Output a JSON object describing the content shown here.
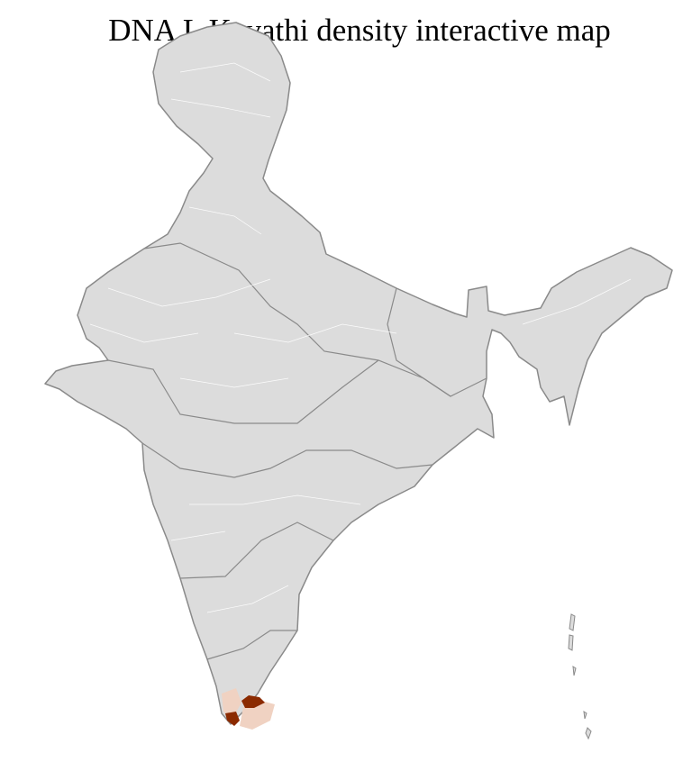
{
  "title": "DNA L Kavathi density interactive map",
  "map": {
    "region": "India (districts)",
    "colors": {
      "background_region": "#dcdcdc",
      "district_border": "#ffffff",
      "state_border": "#8a8a8a",
      "low_density": "#f0d2c2",
      "high_density": "#8b2a00"
    },
    "highlighted_districts": [
      {
        "level": "high"
      },
      {
        "level": "high"
      },
      {
        "level": "low"
      },
      {
        "level": "low"
      },
      {
        "level": "low"
      }
    ]
  }
}
